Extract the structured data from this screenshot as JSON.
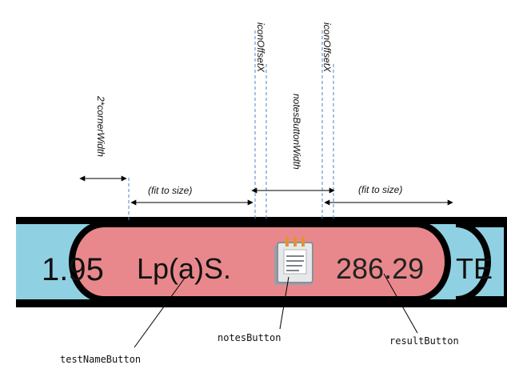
{
  "annotations": {
    "corner_width": "2*cornerWidth",
    "icon_offset_left": "iconOffsetX",
    "icon_offset_right": "iconOffsetX",
    "notes_button_width": "notesButtonWidth",
    "fit_left": "(fit to size)",
    "fit_right": "(fit to size)"
  },
  "bar": {
    "prev_value": "1.95",
    "test_name": "Lp(a)S.",
    "result_value": "286.29",
    "next_value": "TE"
  },
  "callouts": {
    "test_name_button": "testNameButton",
    "notes_button": "notesButton",
    "result_button": "resultButton"
  },
  "colors": {
    "pill_fill": "#e8888c",
    "side_fill": "#8fd1e3",
    "outline": "#000000",
    "guide": "#4a86c8"
  }
}
